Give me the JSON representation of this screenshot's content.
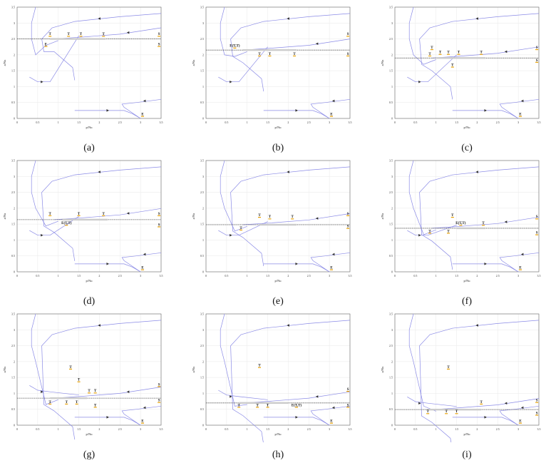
{
  "figure": {
    "xlabel": "p/Nu",
    "ylabel": "a/Nu",
    "xlim": [
      0,
      3.5
    ],
    "ylim": [
      0,
      3.5
    ],
    "ticks": [
      "0",
      "0.5",
      "1",
      "1.5",
      "2",
      "2.5",
      "3",
      "3.5"
    ],
    "curve_color": "#8a8ae6",
    "line_color": "#555555",
    "segment_color": "#cccccc",
    "panels": [
      {
        "caption": "(a)",
        "level": 2.5,
        "seg": [
          0.8,
          2.15
        ],
        "labels": [
          {
            "t": "T",
            "x": 0.8,
            "y": 2.62
          },
          {
            "t": "T",
            "x": 1.25,
            "y": 2.62
          },
          {
            "t": "T",
            "x": 1.55,
            "y": 2.62
          },
          {
            "t": "T",
            "x": 2.1,
            "y": 2.62
          },
          {
            "t": "E",
            "x": 0.7,
            "y": 2.3
          },
          {
            "t": "S",
            "x": 3.45,
            "y": 2.62
          },
          {
            "t": "S",
            "x": 3.45,
            "y": 2.3
          },
          {
            "t": "E",
            "x": 3.05,
            "y": 0.1
          }
        ]
      },
      {
        "caption": "(b)",
        "level": 2.15,
        "seg": [
          0.9,
          2.2
        ],
        "labels": [
          {
            "t": "E(T,T)",
            "x": 0.7,
            "y": 2.25
          },
          {
            "t": "T",
            "x": 1.3,
            "y": 2.0
          },
          {
            "t": "T",
            "x": 1.55,
            "y": 2.0
          },
          {
            "t": "T",
            "x": 2.15,
            "y": 2.0
          },
          {
            "t": "S",
            "x": 3.45,
            "y": 2.62
          },
          {
            "t": "S",
            "x": 3.45,
            "y": 2.0
          },
          {
            "t": "E",
            "x": 3.05,
            "y": 0.1
          }
        ]
      },
      {
        "caption": "(c)",
        "level": 1.9,
        "seg": [
          1.0,
          2.2
        ],
        "labels": [
          {
            "t": "T",
            "x": 0.9,
            "y": 2.2
          },
          {
            "t": "T",
            "x": 0.85,
            "y": 2.0
          },
          {
            "t": "T",
            "x": 1.1,
            "y": 2.05
          },
          {
            "t": "T",
            "x": 1.3,
            "y": 2.05
          },
          {
            "t": "T",
            "x": 1.55,
            "y": 2.05
          },
          {
            "t": "T",
            "x": 2.1,
            "y": 2.05
          },
          {
            "t": "T",
            "x": 1.4,
            "y": 1.65
          },
          {
            "t": "S",
            "x": 3.45,
            "y": 2.2
          },
          {
            "t": "S",
            "x": 3.45,
            "y": 1.8
          },
          {
            "t": "E",
            "x": 3.05,
            "y": 0.1
          }
        ]
      },
      {
        "caption": "(d)",
        "level": 1.64,
        "seg": [
          1.1,
          2.2
        ],
        "labels": [
          {
            "t": "T",
            "x": 0.8,
            "y": 1.8
          },
          {
            "t": "T",
            "x": 1.5,
            "y": 1.8
          },
          {
            "t": "T",
            "x": 2.1,
            "y": 1.8
          },
          {
            "t": "E(T,T)",
            "x": 1.2,
            "y": 1.5
          },
          {
            "t": "S",
            "x": 3.45,
            "y": 1.8
          },
          {
            "t": "S",
            "x": 3.45,
            "y": 1.45
          },
          {
            "t": "E",
            "x": 3.05,
            "y": 0.1
          }
        ]
      },
      {
        "caption": "(e)",
        "level": 1.48,
        "seg": [
          1.3,
          2.2
        ],
        "labels": [
          {
            "t": "T",
            "x": 0.85,
            "y": 1.35
          },
          {
            "t": "T",
            "x": 1.3,
            "y": 1.75
          },
          {
            "t": "T",
            "x": 1.55,
            "y": 1.7
          },
          {
            "t": "T",
            "x": 2.1,
            "y": 1.7
          },
          {
            "t": "S",
            "x": 3.45,
            "y": 1.8
          },
          {
            "t": "S",
            "x": 3.45,
            "y": 1.4
          },
          {
            "t": "E",
            "x": 3.05,
            "y": 0.1
          }
        ]
      },
      {
        "caption": "(f)",
        "level": 1.37,
        "seg": [
          1.5,
          2.2
        ],
        "labels": [
          {
            "t": "T",
            "x": 1.4,
            "y": 1.75
          },
          {
            "t": "T",
            "x": 0.85,
            "y": 1.25
          },
          {
            "t": "T",
            "x": 1.3,
            "y": 1.25
          },
          {
            "t": "E(T,T)",
            "x": 1.6,
            "y": 1.5
          },
          {
            "t": "T",
            "x": 2.15,
            "y": 1.5
          },
          {
            "t": "S",
            "x": 3.45,
            "y": 1.7
          },
          {
            "t": "S",
            "x": 3.45,
            "y": 1.2
          },
          {
            "t": "E",
            "x": 3.05,
            "y": 0.1
          }
        ]
      },
      {
        "caption": "(g)",
        "level": 0.85,
        "seg": [
          0.8,
          1.7
        ],
        "labels": [
          {
            "t": "T",
            "x": 1.3,
            "y": 1.8
          },
          {
            "t": "T",
            "x": 1.5,
            "y": 1.4
          },
          {
            "t": "T",
            "x": 1.75,
            "y": 1.05
          },
          {
            "t": "T",
            "x": 1.9,
            "y": 1.05
          },
          {
            "t": "T",
            "x": 0.8,
            "y": 0.7
          },
          {
            "t": "T",
            "x": 1.2,
            "y": 0.7
          },
          {
            "t": "T",
            "x": 1.45,
            "y": 0.7
          },
          {
            "t": "T",
            "x": 1.9,
            "y": 0.6
          },
          {
            "t": "S",
            "x": 3.45,
            "y": 1.25
          },
          {
            "t": "S",
            "x": 3.45,
            "y": 0.75
          },
          {
            "t": "E",
            "x": 3.05,
            "y": 0.1
          }
        ]
      },
      {
        "caption": "(h)",
        "level": 0.7,
        "seg": [
          0.8,
          2.0
        ],
        "labels": [
          {
            "t": "T",
            "x": 1.3,
            "y": 1.85
          },
          {
            "t": "T",
            "x": 0.8,
            "y": 0.6
          },
          {
            "t": "T",
            "x": 1.25,
            "y": 0.6
          },
          {
            "t": "T",
            "x": 1.5,
            "y": 0.6
          },
          {
            "t": "E(T,T)",
            "x": 2.2,
            "y": 0.6
          },
          {
            "t": "S",
            "x": 3.45,
            "y": 1.1
          },
          {
            "t": "S",
            "x": 3.45,
            "y": 0.6
          },
          {
            "t": "E",
            "x": 3.05,
            "y": 0.1
          }
        ]
      },
      {
        "caption": "(i)",
        "level": 0.49,
        "seg": [
          0.8,
          2.1
        ],
        "labels": [
          {
            "t": "T",
            "x": 1.3,
            "y": 1.8
          },
          {
            "t": "T",
            "x": 2.1,
            "y": 0.7
          },
          {
            "t": "T",
            "x": 0.8,
            "y": 0.4
          },
          {
            "t": "T",
            "x": 1.25,
            "y": 0.4
          },
          {
            "t": "T",
            "x": 1.5,
            "y": 0.4
          },
          {
            "t": "S",
            "x": 3.45,
            "y": 0.75
          },
          {
            "t": "S",
            "x": 3.45,
            "y": 0.35
          },
          {
            "t": "E",
            "x": 3.05,
            "y": 0.1
          }
        ]
      }
    ]
  }
}
